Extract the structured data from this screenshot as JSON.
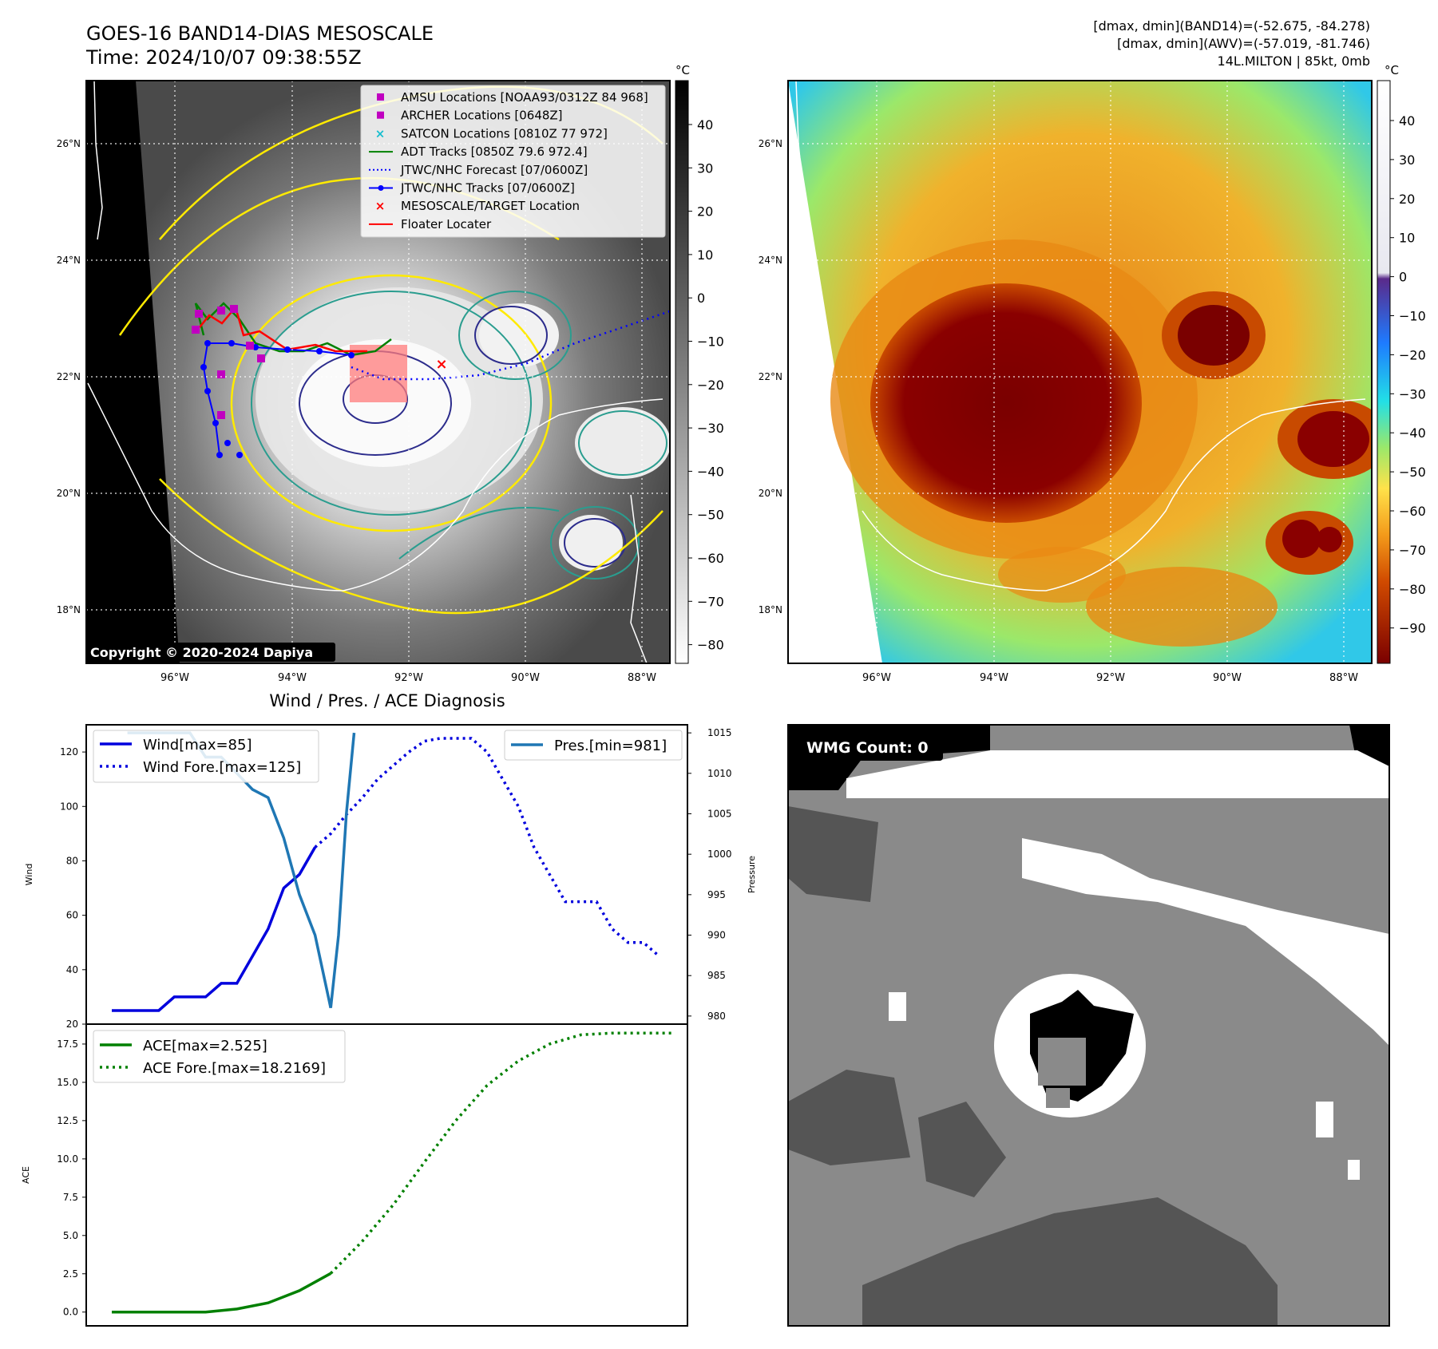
{
  "header": {
    "title_line1": "GOES-16 BAND14-DIAS MESOSCALE",
    "title_line2": "Time: 2024/10/07 09:38:55Z",
    "info_line1": "[dmax, dmin](BAND14)=(-52.675, -84.278)",
    "info_line2": "[dmax, dmin](AWV)=(-57.019, -81.746)",
    "info_line3": "14L.MILTON | 85kt, 0mb"
  },
  "maps": {
    "lat_labels": [
      "26°N",
      "24°N",
      "22°N",
      "20°N",
      "18°N"
    ],
    "lon_labels": [
      "96°W",
      "94°W",
      "92°W",
      "90°W",
      "88°W"
    ],
    "copyright": "Copyright © 2020-2024 Dapiya",
    "left_cbar": {
      "unit": "°C",
      "ticks": [
        "40",
        "30",
        "20",
        "10",
        "0",
        "−10",
        "−20",
        "−30",
        "−40",
        "−50",
        "−60",
        "−70",
        "−80"
      ]
    },
    "right_cbar": {
      "unit": "°C",
      "ticks": [
        "40",
        "30",
        "20",
        "10",
        "0",
        "−10",
        "−20",
        "−30",
        "−40",
        "−50",
        "−60",
        "−70",
        "−80",
        "−90"
      ]
    },
    "legend": [
      {
        "label": "AMSU Locations [NOAA93/0312Z 84 968]",
        "symbol": "square",
        "color": "#c000c0"
      },
      {
        "label": "ARCHER Locations [0648Z]",
        "symbol": "square",
        "color": "#c000c0"
      },
      {
        "label": "SATCON Locations [0810Z 77 972]",
        "symbol": "x",
        "color": "#17becf"
      },
      {
        "label": "ADT Tracks [0850Z 79.6 972.4]",
        "symbol": "line",
        "color": "#008000"
      },
      {
        "label": "JTWC/NHC Forecast [07/0600Z]",
        "symbol": "dotted",
        "color": "#0000ff"
      },
      {
        "label": "JTWC/NHC Tracks [07/0600Z]",
        "symbol": "line-dot",
        "color": "#0000ff"
      },
      {
        "label": "MESOSCALE/TARGET Location",
        "symbol": "x",
        "color": "#ff0000"
      },
      {
        "label": "Floater Locater",
        "symbol": "line",
        "color": "#ff0000"
      }
    ],
    "wmg_count": "WMG Count: 0"
  },
  "colors": {
    "wind": "#0000dd",
    "pressure": "#1f77b4",
    "ace": "#008000",
    "contour_yellow": "#ffea00",
    "contour_teal": "#2a9d8f",
    "contour_navy": "#2c2c8c"
  },
  "chart_data": [
    {
      "type": "line",
      "title": "Wind / Pres. / ACE Diagnosis",
      "ylabel": "Wind",
      "ylabel2": "Pressure",
      "ylim": [
        20,
        130
      ],
      "ylim2": [
        979,
        1016
      ],
      "yticks": [
        "120",
        "100",
        "80",
        "60",
        "40",
        "20"
      ],
      "yticks2": [
        "1015",
        "1010",
        "1005",
        "1000",
        "995",
        "990",
        "985",
        "980"
      ],
      "x_range": [
        0,
        36
      ],
      "series": [
        {
          "name": "Wind[max=85]",
          "axis": "left",
          "style": "solid",
          "x": [
            0,
            1,
            2,
            3,
            4,
            5,
            6,
            7,
            8,
            9,
            10,
            11,
            12,
            13,
            14
          ],
          "values": [
            25,
            25,
            25,
            25,
            30,
            30,
            30,
            35,
            35,
            45,
            55,
            70,
            75,
            85,
            null
          ]
        },
        {
          "name": "Wind Fore.[max=125]",
          "axis": "left",
          "style": "dotted",
          "x": [
            13,
            14,
            15,
            16,
            17,
            18,
            19,
            20,
            21,
            22,
            23,
            24,
            25,
            26,
            27,
            28,
            29,
            30,
            31,
            32,
            33,
            34,
            35
          ],
          "values": [
            85,
            90,
            97,
            103,
            110,
            115,
            120,
            124,
            125,
            125,
            125,
            120,
            110,
            100,
            85,
            75,
            65,
            65,
            65,
            55,
            50,
            50,
            45
          ]
        },
        {
          "name": "Pres.[min=981]",
          "axis": "right",
          "style": "solid",
          "x": [
            1,
            2,
            3,
            4,
            5,
            6,
            7,
            8,
            9,
            10,
            11,
            12,
            13,
            14
          ],
          "values": [
            1015,
            1015,
            1015,
            1015,
            1015,
            1012,
            1012,
            1010,
            1008,
            1007,
            1002,
            995,
            990,
            981
          ]
        },
        {
          "name": "",
          "axis": "right",
          "style": "solid",
          "x": [
            14,
            14.5,
            15,
            15.5
          ],
          "values": [
            981,
            990,
            1005,
            1015
          ]
        }
      ]
    },
    {
      "type": "line",
      "ylabel": "ACE",
      "ylim": [
        -0.9,
        18.8
      ],
      "yticks": [
        "17.5",
        "15.0",
        "12.5",
        "10.0",
        "7.5",
        "5.0",
        "2.5",
        "0.0"
      ],
      "series": [
        {
          "name": "ACE[max=2.525]",
          "style": "solid",
          "x": [
            0,
            2,
            4,
            6,
            8,
            10,
            12,
            14
          ],
          "values": [
            0,
            0,
            0,
            0,
            0.2,
            0.6,
            1.4,
            2.525
          ]
        },
        {
          "name": "ACE Fore.[max=18.2169]",
          "style": "dotted",
          "x": [
            14,
            16,
            18,
            20,
            22,
            24,
            26,
            28,
            30,
            32,
            34,
            36
          ],
          "values": [
            2.525,
            4.6,
            7.0,
            9.8,
            12.5,
            14.8,
            16.4,
            17.5,
            18.1,
            18.2169,
            18.2169,
            18.2169
          ]
        }
      ]
    }
  ]
}
